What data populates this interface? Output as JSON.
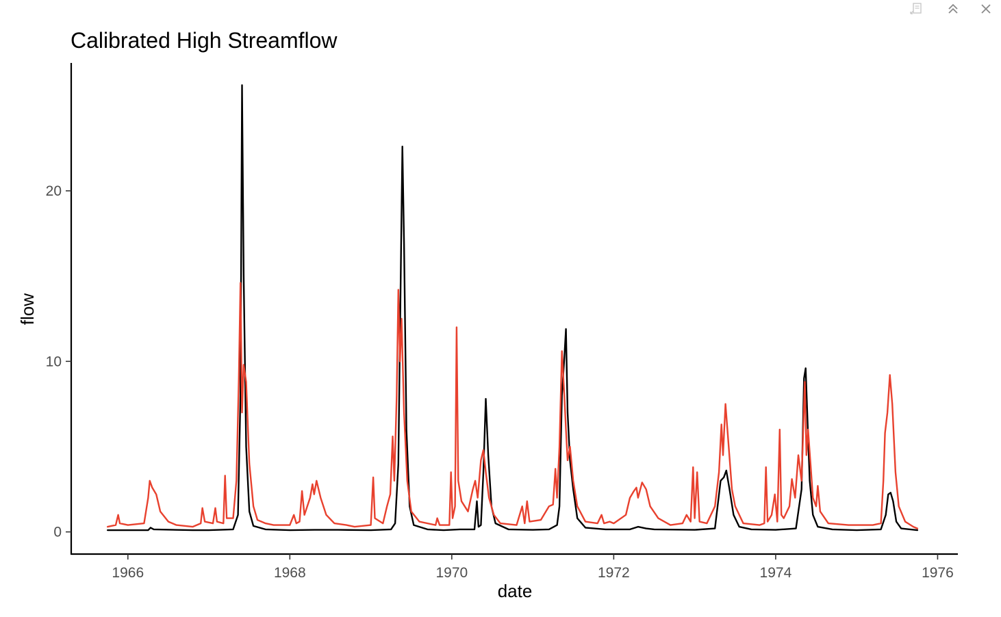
{
  "window": {
    "export_icon": "export-icon",
    "collapse_icon": "chevron-double-up-icon",
    "close_icon": "close-icon"
  },
  "chart_data": {
    "type": "line",
    "title": "Calibrated High Streamflow",
    "xlabel": "date",
    "ylabel": "flow",
    "xlim": [
      1965.3,
      1976.25
    ],
    "ylim": [
      -1.3,
      27.5
    ],
    "x_ticks": [
      1966,
      1968,
      1970,
      1972,
      1974,
      1976
    ],
    "x_tick_labels": [
      "1966",
      "1968",
      "1970",
      "1972",
      "1974",
      "1976"
    ],
    "y_ticks": [
      0,
      10,
      20
    ],
    "y_tick_labels": [
      "0",
      "10",
      "20"
    ],
    "grid": false,
    "legend": "none",
    "series": [
      {
        "color": "#000000",
        "points": [
          [
            1965.75,
            0.1
          ],
          [
            1966.25,
            0.1
          ],
          [
            1966.28,
            0.25
          ],
          [
            1966.32,
            0.15
          ],
          [
            1966.8,
            0.1
          ],
          [
            1967.0,
            0.1
          ],
          [
            1967.3,
            0.15
          ],
          [
            1967.36,
            1.0
          ],
          [
            1967.39,
            8.0
          ],
          [
            1967.41,
            26.2
          ],
          [
            1967.43,
            15.0
          ],
          [
            1967.46,
            5.0
          ],
          [
            1967.5,
            1.2
          ],
          [
            1967.55,
            0.35
          ],
          [
            1967.7,
            0.15
          ],
          [
            1968.0,
            0.1
          ],
          [
            1968.3,
            0.12
          ],
          [
            1968.6,
            0.12
          ],
          [
            1969.0,
            0.1
          ],
          [
            1969.25,
            0.15
          ],
          [
            1969.3,
            0.5
          ],
          [
            1969.34,
            4.0
          ],
          [
            1969.37,
            15.0
          ],
          [
            1969.39,
            22.6
          ],
          [
            1969.41,
            17.0
          ],
          [
            1969.44,
            6.0
          ],
          [
            1969.48,
            1.5
          ],
          [
            1969.53,
            0.4
          ],
          [
            1969.7,
            0.15
          ],
          [
            1969.9,
            0.1
          ],
          [
            1970.1,
            0.15
          ],
          [
            1970.28,
            0.15
          ],
          [
            1970.31,
            1.8
          ],
          [
            1970.33,
            0.3
          ],
          [
            1970.36,
            0.4
          ],
          [
            1970.39,
            3.5
          ],
          [
            1970.42,
            7.8
          ],
          [
            1970.45,
            4.5
          ],
          [
            1970.49,
            1.5
          ],
          [
            1970.54,
            0.5
          ],
          [
            1970.7,
            0.15
          ],
          [
            1971.0,
            0.12
          ],
          [
            1971.2,
            0.15
          ],
          [
            1971.3,
            0.4
          ],
          [
            1971.33,
            1.5
          ],
          [
            1971.36,
            8.0
          ],
          [
            1971.39,
            10.2
          ],
          [
            1971.41,
            11.9
          ],
          [
            1971.43,
            7.0
          ],
          [
            1971.46,
            4.2
          ],
          [
            1971.5,
            2.5
          ],
          [
            1971.55,
            0.8
          ],
          [
            1971.65,
            0.25
          ],
          [
            1971.9,
            0.15
          ],
          [
            1972.2,
            0.15
          ],
          [
            1972.3,
            0.3
          ],
          [
            1972.4,
            0.2
          ],
          [
            1972.5,
            0.15
          ],
          [
            1973.0,
            0.12
          ],
          [
            1973.25,
            0.2
          ],
          [
            1973.32,
            3.0
          ],
          [
            1973.36,
            3.2
          ],
          [
            1973.39,
            3.6
          ],
          [
            1973.43,
            2.5
          ],
          [
            1973.48,
            1.0
          ],
          [
            1973.55,
            0.3
          ],
          [
            1973.7,
            0.15
          ],
          [
            1974.0,
            0.12
          ],
          [
            1974.25,
            0.2
          ],
          [
            1974.32,
            2.5
          ],
          [
            1974.35,
            9.0
          ],
          [
            1974.37,
            9.6
          ],
          [
            1974.39,
            7.0
          ],
          [
            1974.42,
            3.0
          ],
          [
            1974.46,
            1.0
          ],
          [
            1974.52,
            0.3
          ],
          [
            1974.7,
            0.15
          ],
          [
            1975.0,
            0.1
          ],
          [
            1975.3,
            0.15
          ],
          [
            1975.36,
            1.0
          ],
          [
            1975.39,
            2.2
          ],
          [
            1975.42,
            2.3
          ],
          [
            1975.45,
            1.8
          ],
          [
            1975.49,
            0.6
          ],
          [
            1975.55,
            0.2
          ],
          [
            1975.75,
            0.1
          ]
        ]
      },
      {
        "color": "#e8412e",
        "points": [
          [
            1965.75,
            0.3
          ],
          [
            1965.85,
            0.4
          ],
          [
            1965.88,
            1.0
          ],
          [
            1965.9,
            0.5
          ],
          [
            1966.0,
            0.4
          ],
          [
            1966.2,
            0.5
          ],
          [
            1966.25,
            2.0
          ],
          [
            1966.27,
            3.0
          ],
          [
            1966.3,
            2.6
          ],
          [
            1966.35,
            2.2
          ],
          [
            1966.4,
            1.2
          ],
          [
            1966.5,
            0.6
          ],
          [
            1966.6,
            0.4
          ],
          [
            1966.8,
            0.3
          ],
          [
            1966.9,
            0.5
          ],
          [
            1966.92,
            1.4
          ],
          [
            1966.95,
            0.6
          ],
          [
            1967.05,
            0.5
          ],
          [
            1967.08,
            1.4
          ],
          [
            1967.1,
            0.6
          ],
          [
            1967.18,
            0.5
          ],
          [
            1967.2,
            3.3
          ],
          [
            1967.22,
            0.8
          ],
          [
            1967.3,
            0.8
          ],
          [
            1967.34,
            3.0
          ],
          [
            1967.37,
            9.0
          ],
          [
            1967.39,
            14.6
          ],
          [
            1967.41,
            7.0
          ],
          [
            1967.43,
            9.8
          ],
          [
            1967.46,
            8.8
          ],
          [
            1967.5,
            4.0
          ],
          [
            1967.55,
            1.5
          ],
          [
            1967.6,
            0.7
          ],
          [
            1967.7,
            0.5
          ],
          [
            1967.8,
            0.4
          ],
          [
            1968.0,
            0.4
          ],
          [
            1968.05,
            1.0
          ],
          [
            1968.08,
            0.5
          ],
          [
            1968.12,
            0.6
          ],
          [
            1968.15,
            2.4
          ],
          [
            1968.18,
            1.0
          ],
          [
            1968.25,
            2.0
          ],
          [
            1968.28,
            2.8
          ],
          [
            1968.3,
            2.2
          ],
          [
            1968.33,
            3.0
          ],
          [
            1968.38,
            2.0
          ],
          [
            1968.45,
            1.0
          ],
          [
            1968.55,
            0.5
          ],
          [
            1968.7,
            0.4
          ],
          [
            1968.8,
            0.3
          ],
          [
            1969.0,
            0.4
          ],
          [
            1969.03,
            3.2
          ],
          [
            1969.05,
            0.8
          ],
          [
            1969.15,
            0.5
          ],
          [
            1969.2,
            1.5
          ],
          [
            1969.24,
            2.2
          ],
          [
            1969.27,
            5.6
          ],
          [
            1969.29,
            3.0
          ],
          [
            1969.32,
            8.0
          ],
          [
            1969.34,
            14.2
          ],
          [
            1969.36,
            10.0
          ],
          [
            1969.38,
            12.5
          ],
          [
            1969.41,
            7.0
          ],
          [
            1969.45,
            3.0
          ],
          [
            1969.5,
            1.2
          ],
          [
            1969.6,
            0.6
          ],
          [
            1969.8,
            0.4
          ],
          [
            1969.82,
            0.8
          ],
          [
            1969.85,
            0.4
          ],
          [
            1969.97,
            0.4
          ],
          [
            1969.99,
            3.5
          ],
          [
            1970.01,
            0.8
          ],
          [
            1970.04,
            1.5
          ],
          [
            1970.06,
            12.0
          ],
          [
            1970.08,
            3.0
          ],
          [
            1970.12,
            1.8
          ],
          [
            1970.2,
            1.2
          ],
          [
            1970.26,
            2.5
          ],
          [
            1970.29,
            3.0
          ],
          [
            1970.32,
            2.0
          ],
          [
            1970.36,
            4.2
          ],
          [
            1970.39,
            4.8
          ],
          [
            1970.42,
            3.5
          ],
          [
            1970.46,
            2.0
          ],
          [
            1970.52,
            1.0
          ],
          [
            1970.6,
            0.5
          ],
          [
            1970.8,
            0.4
          ],
          [
            1970.87,
            1.5
          ],
          [
            1970.9,
            0.5
          ],
          [
            1970.93,
            1.8
          ],
          [
            1970.96,
            0.6
          ],
          [
            1971.1,
            0.7
          ],
          [
            1971.2,
            1.5
          ],
          [
            1971.25,
            1.6
          ],
          [
            1971.28,
            3.7
          ],
          [
            1971.3,
            2.0
          ],
          [
            1971.33,
            5.0
          ],
          [
            1971.36,
            10.6
          ],
          [
            1971.39,
            8.0
          ],
          [
            1971.41,
            6.0
          ],
          [
            1971.43,
            4.2
          ],
          [
            1971.46,
            5.0
          ],
          [
            1971.5,
            3.0
          ],
          [
            1971.55,
            1.5
          ],
          [
            1971.65,
            0.6
          ],
          [
            1971.8,
            0.5
          ],
          [
            1971.85,
            1.0
          ],
          [
            1971.88,
            0.5
          ],
          [
            1971.95,
            0.6
          ],
          [
            1972.0,
            0.5
          ],
          [
            1972.15,
            1.0
          ],
          [
            1972.2,
            2.0
          ],
          [
            1972.25,
            2.4
          ],
          [
            1972.28,
            2.6
          ],
          [
            1972.3,
            2.0
          ],
          [
            1972.35,
            2.9
          ],
          [
            1972.4,
            2.5
          ],
          [
            1972.45,
            1.5
          ],
          [
            1972.55,
            0.8
          ],
          [
            1972.7,
            0.4
          ],
          [
            1972.85,
            0.5
          ],
          [
            1972.9,
            1.0
          ],
          [
            1972.95,
            0.6
          ],
          [
            1972.98,
            3.8
          ],
          [
            1973.0,
            0.8
          ],
          [
            1973.03,
            3.5
          ],
          [
            1973.06,
            0.6
          ],
          [
            1973.15,
            0.5
          ],
          [
            1973.25,
            1.5
          ],
          [
            1973.3,
            3.5
          ],
          [
            1973.33,
            6.3
          ],
          [
            1973.35,
            4.5
          ],
          [
            1973.38,
            7.5
          ],
          [
            1973.42,
            5.0
          ],
          [
            1973.46,
            2.5
          ],
          [
            1973.5,
            1.5
          ],
          [
            1973.6,
            0.5
          ],
          [
            1973.8,
            0.4
          ],
          [
            1973.86,
            0.5
          ],
          [
            1973.88,
            3.8
          ],
          [
            1973.9,
            0.6
          ],
          [
            1973.95,
            1.0
          ],
          [
            1973.99,
            2.2
          ],
          [
            1974.02,
            0.6
          ],
          [
            1974.05,
            6.0
          ],
          [
            1974.07,
            1.0
          ],
          [
            1974.1,
            0.8
          ],
          [
            1974.17,
            1.5
          ],
          [
            1974.2,
            3.1
          ],
          [
            1974.24,
            2.0
          ],
          [
            1974.28,
            4.5
          ],
          [
            1974.32,
            3.0
          ],
          [
            1974.36,
            8.8
          ],
          [
            1974.38,
            4.5
          ],
          [
            1974.4,
            6.0
          ],
          [
            1974.43,
            4.0
          ],
          [
            1974.46,
            2.0
          ],
          [
            1974.5,
            1.5
          ],
          [
            1974.52,
            2.7
          ],
          [
            1974.55,
            1.2
          ],
          [
            1974.65,
            0.5
          ],
          [
            1974.9,
            0.4
          ],
          [
            1975.2,
            0.4
          ],
          [
            1975.3,
            0.5
          ],
          [
            1975.33,
            3.0
          ],
          [
            1975.35,
            5.8
          ],
          [
            1975.38,
            7.0
          ],
          [
            1975.41,
            9.2
          ],
          [
            1975.44,
            7.5
          ],
          [
            1975.48,
            3.5
          ],
          [
            1975.52,
            1.5
          ],
          [
            1975.6,
            0.6
          ],
          [
            1975.7,
            0.3
          ],
          [
            1975.75,
            0.2
          ]
        ]
      }
    ]
  }
}
